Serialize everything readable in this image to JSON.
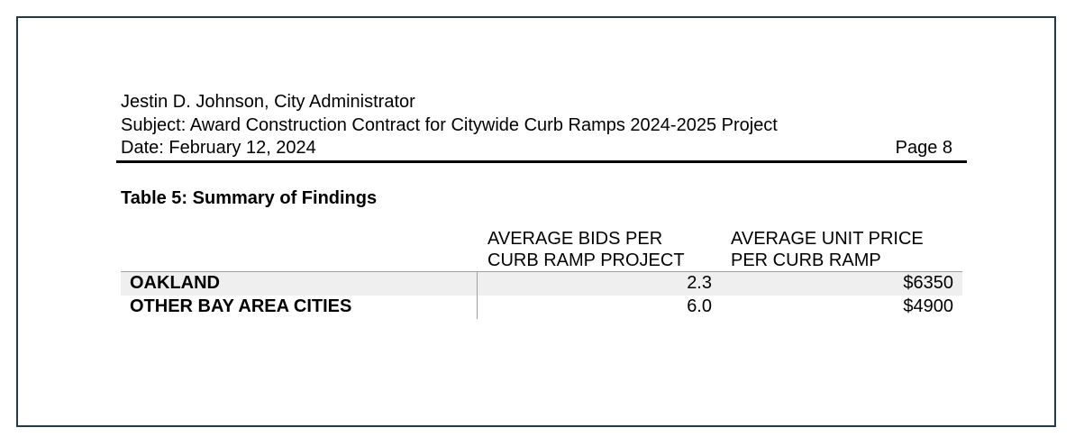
{
  "header": {
    "administrator": "Jestin D. Johnson, City Administrator",
    "subject": "Subject: Award Construction Contract for Citywide Curb Ramps 2024-2025 Project",
    "date": "Date:  February 12, 2024",
    "page": "Page 8"
  },
  "table": {
    "title": "Table 5: Summary of Findings",
    "columns": {
      "bids": [
        "AVERAGE BIDS PER",
        "CURB RAMP PROJECT"
      ],
      "price": [
        "AVERAGE UNIT PRICE",
        "PER CURB RAMP"
      ]
    },
    "rows": [
      {
        "city": "OAKLAND",
        "bids": "2.3",
        "price": "$6350"
      },
      {
        "city": "OTHER BAY AREA CITIES",
        "bids": "6.0",
        "price": "$4900"
      }
    ]
  },
  "colors": {
    "frame_border": "#1f3a4d",
    "row_shade": "#efefef",
    "table_rule": "#a0a0a0"
  }
}
